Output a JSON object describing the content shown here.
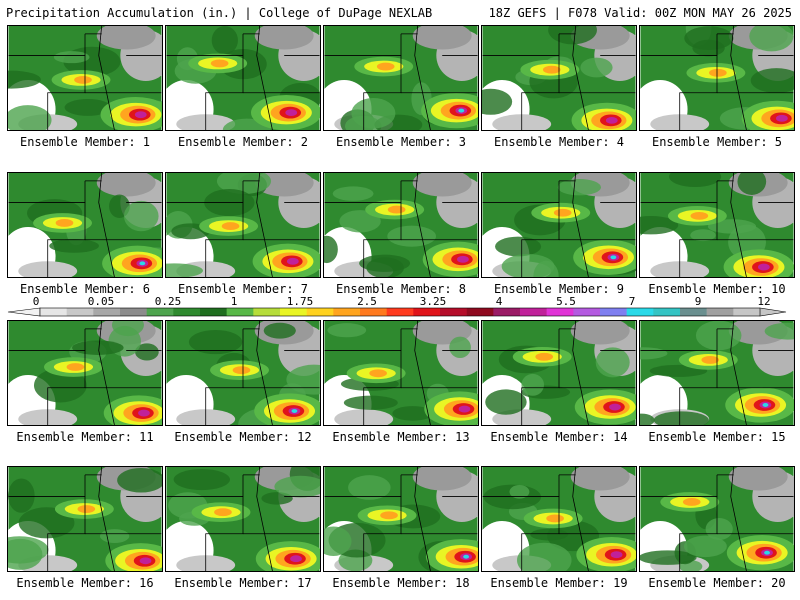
{
  "header": {
    "title": "Precipitation Accumulation (in.) | College of DuPage NEXLAB",
    "run_info": "18Z GEFS | F078 Valid: 00Z MON MAY 26 2025"
  },
  "panel_caption_prefix": "Ensemble Member:",
  "members": [
    1,
    2,
    3,
    4,
    5,
    6,
    7,
    8,
    9,
    10,
    11,
    12,
    13,
    14,
    15,
    16,
    17,
    18,
    19,
    20
  ],
  "colorbar": {
    "tick_labels": [
      "0",
      "0.05",
      "0.25",
      "1",
      "1.75",
      "2.5",
      "3.25",
      "4",
      "5.5",
      "7",
      "9",
      "12"
    ],
    "colors": [
      "#e6e6e6",
      "#c8c8c8",
      "#a8a8a8",
      "#8c8c8c",
      "#4ea44e",
      "#2f8a2f",
      "#1f6e1f",
      "#58b847",
      "#b6dd3a",
      "#e9f524",
      "#ffd21f",
      "#ffa51f",
      "#ff7a1f",
      "#ff3b1f",
      "#e0141a",
      "#b50d2a",
      "#8f0a1f",
      "#9b1b66",
      "#c0219a",
      "#e033d6",
      "#b45ae0",
      "#7f7ff0",
      "#2ad9e8",
      "#34c4c4",
      "#6a8f8f",
      "#a0a0a0",
      "#c6c6c6"
    ]
  }
}
